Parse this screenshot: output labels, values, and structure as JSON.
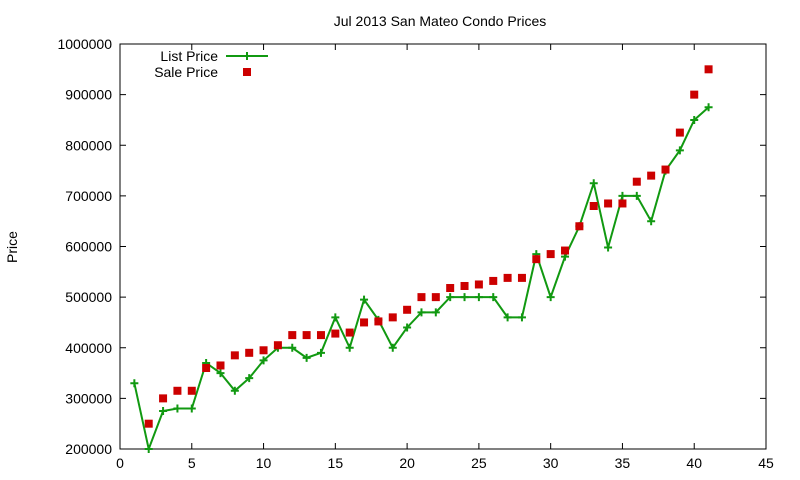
{
  "chart_data": {
    "type": "line",
    "title": "Jul 2013 San Mateo Condo Prices",
    "xlabel": "",
    "ylabel": "Price",
    "xlim": [
      0,
      45
    ],
    "ylim": [
      200000,
      1000000
    ],
    "x_ticks": [
      0,
      5,
      10,
      15,
      20,
      25,
      30,
      35,
      40,
      45
    ],
    "y_ticks": [
      200000,
      300000,
      400000,
      500000,
      600000,
      700000,
      800000,
      900000,
      1000000
    ],
    "grid": false,
    "legend": "top-left",
    "series": [
      {
        "name": "List Price",
        "style": "line+plus-marker",
        "color": "#119911",
        "x": [
          1,
          2,
          3,
          4,
          5,
          6,
          7,
          8,
          9,
          10,
          11,
          12,
          13,
          14,
          15,
          16,
          17,
          18,
          19,
          20,
          21,
          22,
          23,
          24,
          25,
          26,
          27,
          28,
          29,
          30,
          31,
          32,
          33,
          34,
          35,
          36,
          37,
          38,
          39,
          40,
          41
        ],
        "values": [
          330000,
          200000,
          275000,
          280000,
          280000,
          370000,
          350000,
          315000,
          340000,
          375000,
          400000,
          400000,
          380000,
          390000,
          460000,
          400000,
          495000,
          455000,
          400000,
          440000,
          470000,
          470000,
          500000,
          500000,
          500000,
          500000,
          460000,
          460000,
          585000,
          500000,
          580000,
          640000,
          725000,
          598000,
          700000,
          700000,
          650000,
          750000,
          790000,
          850000,
          875000
        ]
      },
      {
        "name": "Sale Price",
        "style": "square-marker",
        "color": "#cc0000",
        "x": [
          2,
          3,
          4,
          5,
          6,
          7,
          8,
          9,
          10,
          11,
          12,
          13,
          14,
          15,
          16,
          17,
          18,
          19,
          20,
          21,
          22,
          23,
          24,
          25,
          26,
          27,
          28,
          29,
          30,
          31,
          32,
          33,
          34,
          35,
          36,
          37,
          38,
          39,
          40,
          41
        ],
        "values": [
          250000,
          300000,
          315000,
          315000,
          360000,
          365000,
          385000,
          390000,
          395000,
          405000,
          425000,
          425000,
          425000,
          428000,
          430000,
          450000,
          452000,
          460000,
          475000,
          500000,
          500000,
          518000,
          522000,
          525000,
          532000,
          538000,
          538000,
          575000,
          585000,
          592000,
          640000,
          680000,
          685000,
          685000,
          728000,
          740000,
          752000,
          825000,
          900000,
          950000
        ]
      }
    ]
  }
}
